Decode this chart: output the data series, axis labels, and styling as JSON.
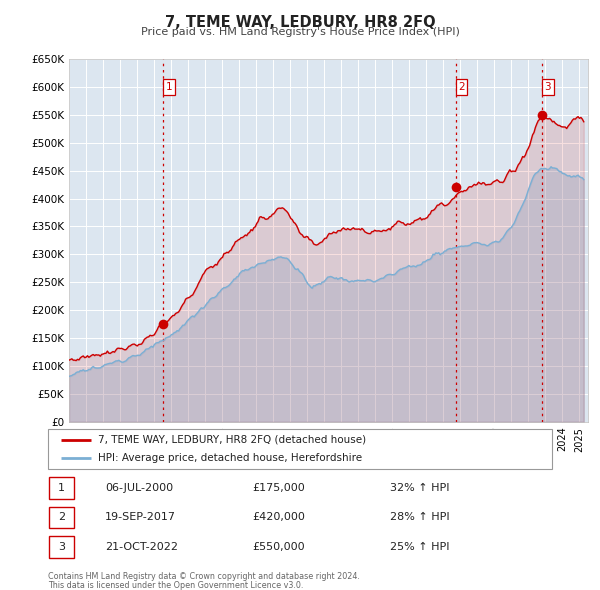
{
  "title": "7, TEME WAY, LEDBURY, HR8 2FQ",
  "subtitle": "Price paid vs. HM Land Registry's House Price Index (HPI)",
  "background_color": "#ffffff",
  "plot_bg_color": "#dce6f0",
  "grid_color": "#ffffff",
  "ylim": [
    0,
    650000
  ],
  "yticks": [
    0,
    50000,
    100000,
    150000,
    200000,
    250000,
    300000,
    350000,
    400000,
    450000,
    500000,
    550000,
    600000,
    650000
  ],
  "ytick_labels": [
    "£0",
    "£50K",
    "£100K",
    "£150K",
    "£200K",
    "£250K",
    "£300K",
    "£350K",
    "£400K",
    "£450K",
    "£500K",
    "£550K",
    "£600K",
    "£650K"
  ],
  "xlim_start": 1995.0,
  "xlim_end": 2025.5,
  "sale_color": "#cc0000",
  "hpi_color": "#7bafd4",
  "marker_size": 7,
  "marker1_x": 2000.52,
  "marker1_y": 175000,
  "marker2_x": 2017.72,
  "marker2_y": 420000,
  "marker3_x": 2022.8,
  "marker3_y": 550000,
  "vline_color": "#cc0000",
  "vline_style": ":",
  "legend_label_sale": "7, TEME WAY, LEDBURY, HR8 2FQ (detached house)",
  "legend_label_hpi": "HPI: Average price, detached house, Herefordshire",
  "sale_entries": [
    {
      "num": 1,
      "date": "06-JUL-2000",
      "price": "£175,000",
      "pct": "32% ↑ HPI"
    },
    {
      "num": 2,
      "date": "19-SEP-2017",
      "price": "£420,000",
      "pct": "28% ↑ HPI"
    },
    {
      "num": 3,
      "date": "21-OCT-2022",
      "price": "£550,000",
      "pct": "25% ↑ HPI"
    }
  ],
  "footer_line1": "Contains HM Land Registry data © Crown copyright and database right 2024.",
  "footer_line2": "This data is licensed under the Open Government Licence v3.0."
}
